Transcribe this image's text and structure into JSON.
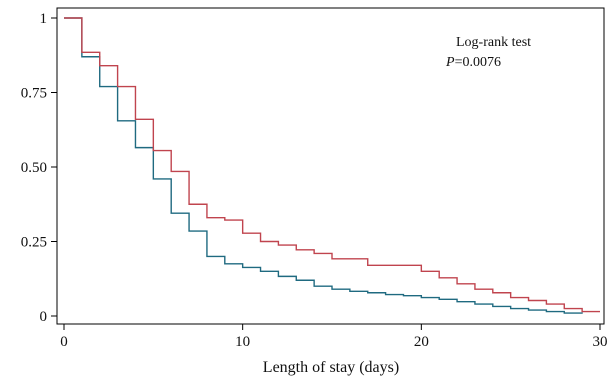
{
  "chart_data": {
    "type": "line",
    "title": "",
    "xlabel": "Length of stay (days)",
    "ylabel": "",
    "xlim": [
      0,
      30
    ],
    "ylim": [
      0,
      1
    ],
    "grid": false,
    "legend": "none",
    "x_ticks": [
      {
        "value": 0,
        "label": "0"
      },
      {
        "value": 10,
        "label": "10"
      },
      {
        "value": 20,
        "label": "20"
      },
      {
        "value": 30,
        "label": "30"
      }
    ],
    "y_ticks": [
      {
        "value": 0,
        "label": "0"
      },
      {
        "value": 0.25,
        "label": "0.25"
      },
      {
        "value": 0.5,
        "label": "0.50"
      },
      {
        "value": 0.75,
        "label": "0.75"
      },
      {
        "value": 1,
        "label": "1"
      }
    ],
    "annotations": {
      "test_name": "Log-rank test",
      "p_symbol": "P",
      "p_value": "=0.0076"
    },
    "series": [
      {
        "color": "#1f6a80",
        "step": true,
        "x": [
          0,
          1,
          2,
          3,
          4,
          5,
          6,
          7,
          8,
          9,
          10,
          11,
          12,
          13,
          14,
          15,
          16,
          17,
          18,
          19,
          20,
          21,
          22,
          23,
          24,
          25,
          26,
          27,
          28,
          29
        ],
        "y": [
          1.0,
          0.87,
          0.77,
          0.655,
          0.565,
          0.46,
          0.345,
          0.285,
          0.2,
          0.175,
          0.163,
          0.15,
          0.133,
          0.12,
          0.1,
          0.09,
          0.083,
          0.078,
          0.072,
          0.068,
          0.062,
          0.056,
          0.048,
          0.04,
          0.032,
          0.025,
          0.02,
          0.015,
          0.01,
          0.008
        ]
      },
      {
        "color": "#c0444e",
        "step": true,
        "x": [
          0,
          1,
          2,
          3,
          4,
          5,
          6,
          7,
          8,
          9,
          10,
          11,
          12,
          13,
          14,
          15,
          16,
          17,
          18,
          19,
          20,
          21,
          22,
          23,
          24,
          25,
          26,
          27,
          28,
          29,
          30
        ],
        "y": [
          1.0,
          0.885,
          0.84,
          0.77,
          0.66,
          0.555,
          0.485,
          0.375,
          0.33,
          0.322,
          0.278,
          0.25,
          0.238,
          0.222,
          0.21,
          0.192,
          0.192,
          0.17,
          0.17,
          0.17,
          0.15,
          0.128,
          0.108,
          0.09,
          0.078,
          0.062,
          0.052,
          0.04,
          0.025,
          0.015,
          0.015
        ]
      }
    ]
  }
}
